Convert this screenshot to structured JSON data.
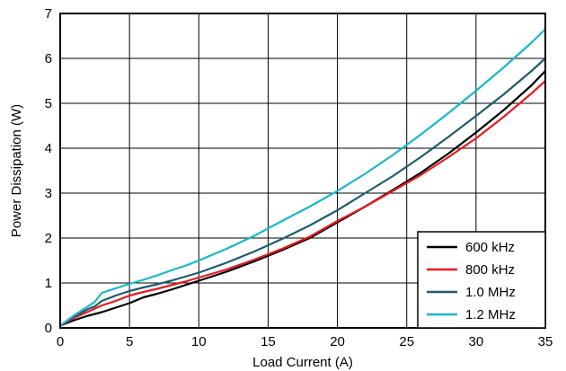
{
  "chart_data": {
    "type": "line",
    "title": "",
    "xlabel": "Load Current (A)",
    "ylabel": "Power Dissipation (W)",
    "xlim": [
      0,
      35
    ],
    "ylim": [
      0,
      7
    ],
    "xticks": [
      "0",
      "5",
      "10",
      "15",
      "20",
      "25",
      "30",
      "35"
    ],
    "yticks": [
      "0",
      "1",
      "2",
      "3",
      "4",
      "5",
      "6",
      "7"
    ],
    "grid": true,
    "legend_position": "bottom-right",
    "series": [
      {
        "name": "600 kHz",
        "color": "#000000",
        "x": [
          0,
          1,
          2,
          3,
          4,
          5,
          6,
          7,
          8,
          9,
          10,
          12,
          14,
          16,
          18,
          20,
          22,
          24,
          26,
          28,
          30,
          32,
          34,
          35
        ],
        "y": [
          0.05,
          0.17,
          0.27,
          0.35,
          0.45,
          0.55,
          0.68,
          0.76,
          0.85,
          0.95,
          1.05,
          1.25,
          1.48,
          1.73,
          2.0,
          2.35,
          2.7,
          3.07,
          3.45,
          3.88,
          4.35,
          4.85,
          5.4,
          5.72
        ]
      },
      {
        "name": "800 kHz",
        "color": "#e8191f",
        "x": [
          0,
          1,
          2,
          3,
          4,
          5,
          6,
          7,
          8,
          9,
          10,
          12,
          14,
          16,
          18,
          20,
          22,
          24,
          26,
          28,
          30,
          32,
          34,
          35
        ],
        "y": [
          0.05,
          0.22,
          0.36,
          0.5,
          0.6,
          0.72,
          0.8,
          0.87,
          0.95,
          1.03,
          1.12,
          1.3,
          1.52,
          1.76,
          2.03,
          2.38,
          2.7,
          3.05,
          3.4,
          3.8,
          4.22,
          4.7,
          5.22,
          5.5
        ]
      },
      {
        "name": "1.0 MHz",
        "color": "#1f5b6e",
        "x": [
          0,
          1,
          2,
          2.5,
          3,
          4,
          5,
          6,
          7,
          8,
          9,
          10,
          12,
          14,
          16,
          18,
          20,
          22,
          24,
          26,
          28,
          30,
          32,
          34,
          35
        ],
        "y": [
          0.05,
          0.25,
          0.42,
          0.48,
          0.6,
          0.72,
          0.82,
          0.9,
          0.97,
          1.05,
          1.14,
          1.23,
          1.45,
          1.7,
          1.98,
          2.28,
          2.62,
          3.0,
          3.38,
          3.8,
          4.25,
          4.72,
          5.2,
          5.72,
          6.0
        ]
      },
      {
        "name": "1.2 MHz",
        "color": "#17b7cf",
        "x": [
          0,
          1,
          2,
          2.5,
          3,
          4,
          5,
          6,
          7,
          8,
          9,
          10,
          12,
          14,
          16,
          18,
          20,
          22,
          24,
          26,
          28,
          30,
          32,
          34,
          35
        ],
        "y": [
          0.05,
          0.28,
          0.48,
          0.58,
          0.78,
          0.88,
          0.98,
          1.07,
          1.17,
          1.28,
          1.38,
          1.5,
          1.76,
          2.05,
          2.38,
          2.7,
          3.05,
          3.43,
          3.85,
          4.3,
          4.78,
          5.28,
          5.8,
          6.35,
          6.65
        ]
      }
    ]
  }
}
